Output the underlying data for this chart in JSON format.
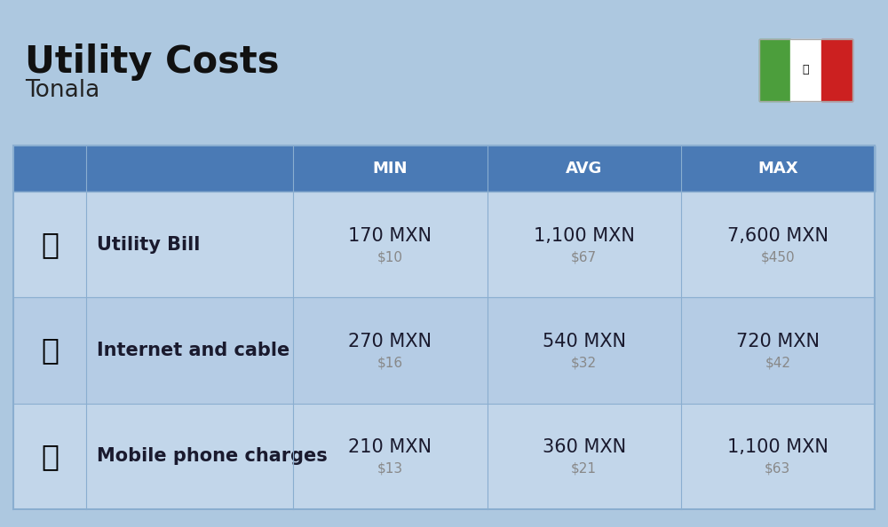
{
  "title": "Utility Costs",
  "subtitle": "Tonala",
  "background_color": "#adc8e0",
  "header_bg_color": "#4a7ab5",
  "header_text_color": "#ffffff",
  "row_bg_color_odd": "#c2d6ea",
  "row_bg_color_even": "#b5cce5",
  "cell_text_color": "#1a1a2e",
  "sub_text_color": "#888888",
  "border_color": "#8aaed0",
  "rows": [
    {
      "label": "Utility Bill",
      "min_mxn": "170 MXN",
      "min_usd": "$10",
      "avg_mxn": "1,100 MXN",
      "avg_usd": "$67",
      "max_mxn": "7,600 MXN",
      "max_usd": "$450"
    },
    {
      "label": "Internet and cable",
      "min_mxn": "270 MXN",
      "min_usd": "$16",
      "avg_mxn": "540 MXN",
      "avg_usd": "$32",
      "max_mxn": "720 MXN",
      "max_usd": "$42"
    },
    {
      "label": "Mobile phone charges",
      "min_mxn": "210 MXN",
      "min_usd": "$13",
      "avg_mxn": "360 MXN",
      "avg_usd": "$21",
      "max_mxn": "1,100 MXN",
      "max_usd": "$63"
    }
  ],
  "col_labels": [
    "MIN",
    "AVG",
    "MAX"
  ],
  "title_fontsize": 30,
  "subtitle_fontsize": 19,
  "header_fontsize": 13,
  "cell_fontsize": 15,
  "sub_fontsize": 11,
  "label_fontsize": 15,
  "flag_green": "#4c9e3c",
  "flag_white": "#ffffff",
  "flag_red": "#cc2020"
}
